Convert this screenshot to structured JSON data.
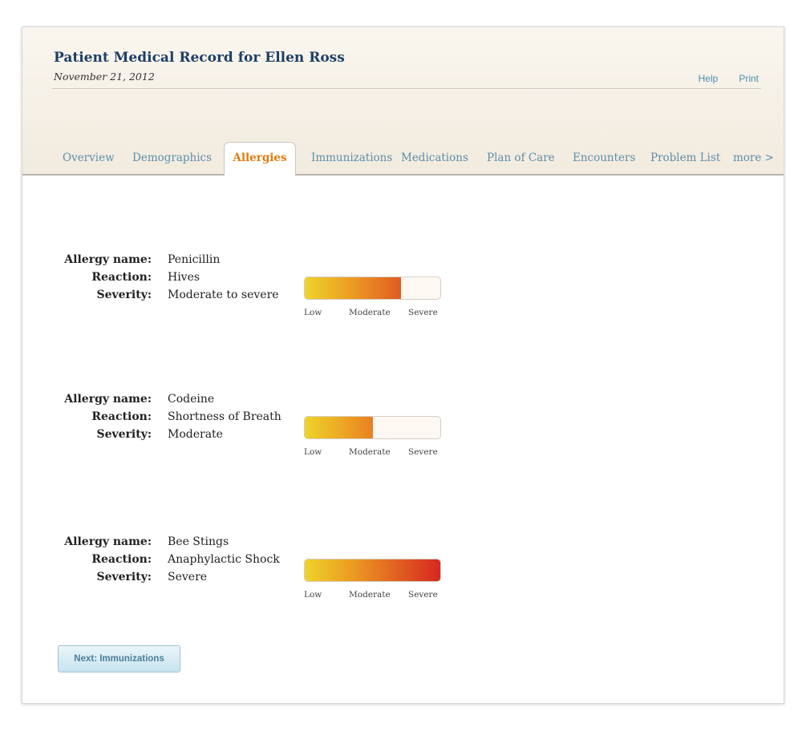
{
  "header": {
    "title": "Patient Medical Record for Ellen Ross",
    "date": "November 21, 2012",
    "links": {
      "help": "Help",
      "print": "Print"
    }
  },
  "tabs": [
    {
      "label": "Overview"
    },
    {
      "label": "Demographics"
    },
    {
      "label": "Allergies",
      "active": true
    },
    {
      "label": "Immunizations"
    },
    {
      "label": "Medications"
    },
    {
      "label": "Plan of Care"
    },
    {
      "label": "Encounters"
    },
    {
      "label": "Problem List"
    },
    {
      "label": "more >"
    }
  ],
  "labels": {
    "allergy_name": "Allergy name:",
    "reaction": "Reaction:",
    "severity": "Severity:"
  },
  "severity_scale": {
    "low": "Low",
    "moderate": "Moderate",
    "severe": "Severe"
  },
  "allergies": [
    {
      "name": "Penicillin",
      "reaction": "Hives",
      "severity": "Moderate to severe",
      "severity_level": 0.71
    },
    {
      "name": "Codeine",
      "reaction": "Shortness of Breath",
      "severity": "Moderate",
      "severity_level": 0.5
    },
    {
      "name": "Bee Stings",
      "reaction": "Anaphylactic Shock",
      "severity": "Severe",
      "severity_level": 1.0
    }
  ],
  "colors": {
    "title": "#1e3f66",
    "tab": "#5c8fab",
    "tab_active": "#e07c0f",
    "severity_low": "#eed32a",
    "severity_moderate": "#ec9a22",
    "severity_high": "#d52620"
  },
  "next_button": {
    "label": "Next: Immunizations"
  }
}
